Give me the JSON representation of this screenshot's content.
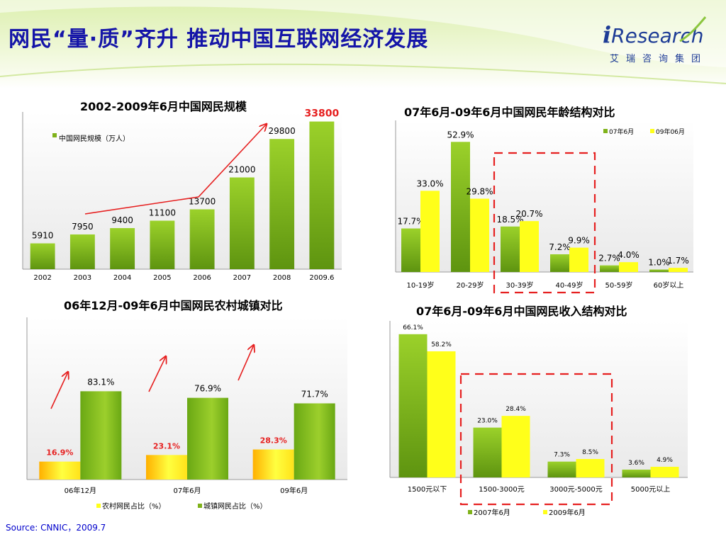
{
  "header": {
    "title": "网民“量·质”齐升  推动中国互联网经济发展",
    "logo_i": "i",
    "logo_text": "Research",
    "logo_sub": "艾瑞咨询集团"
  },
  "source": "Source: CNNIC，2009.7",
  "colors": {
    "green": "#7fb21a",
    "yellow": "#ffff1a",
    "title_blue": "#1515a8",
    "red": "#e62020"
  },
  "chart_data": [
    {
      "type": "bar",
      "title": "2002-2009年6月中国网民规模",
      "categories": [
        "2002",
        "2003",
        "2004",
        "2005",
        "2006",
        "2007",
        "2008",
        "2009.6"
      ],
      "series": [
        {
          "name": "中国网民规模（万人）",
          "values": [
            5910,
            7950,
            9400,
            11100,
            13700,
            21000,
            29800,
            33800
          ]
        }
      ],
      "value_labels": [
        "5910",
        "7950",
        "9400",
        "11100",
        "13700",
        "21000",
        "29800",
        "33800"
      ],
      "ylim": [
        0,
        36000
      ],
      "legend": "top-left"
    },
    {
      "type": "bar",
      "title": "07年6月-09年6月中国网民年龄结构对比",
      "categories": [
        "10-19岁",
        "20-29岁",
        "30-39岁",
        "40-49岁",
        "50-59岁",
        "60岁以上"
      ],
      "series": [
        {
          "name": "07年6月",
          "values": [
            17.7,
            52.9,
            18.5,
            7.2,
            2.7,
            1.0
          ],
          "labels": [
            "17.7%",
            "52.9%",
            "18.5%",
            "7.2%",
            "2.7%",
            "1.0%"
          ]
        },
        {
          "name": "09年06月",
          "values": [
            33.0,
            29.8,
            20.7,
            9.9,
            4.0,
            1.7
          ],
          "labels": [
            "33.0%",
            "29.8%",
            "20.7%",
            "9.9%",
            "4.0%",
            "1.7%"
          ]
        }
      ],
      "ylim": [
        0,
        55
      ],
      "legend": "top-right"
    },
    {
      "type": "bar",
      "title": "06年12月-09年6月中国网民农村城镇对比",
      "categories": [
        "06年12月",
        "07年6月",
        "09年6月"
      ],
      "series": [
        {
          "name": "农村网民占比（%）",
          "values": [
            16.9,
            23.1,
            28.3
          ],
          "labels": [
            "16.9%",
            "23.1%",
            "28.3%"
          ]
        },
        {
          "name": "城镇网民占比（%）",
          "values": [
            83.1,
            76.9,
            71.7
          ],
          "labels": [
            "83.1%",
            "76.9%",
            "71.7%"
          ]
        }
      ],
      "ylim": [
        0,
        100
      ],
      "legend": "bottom"
    },
    {
      "type": "bar",
      "title": "07年6月-09年6月中国网民收入结构对比",
      "categories": [
        "1500元以下",
        "1500-3000元",
        "3000元-5000元",
        "5000元以上"
      ],
      "series": [
        {
          "name": "2007年6月",
          "values": [
            66.1,
            23.0,
            7.3,
            3.6
          ],
          "labels": [
            "66.1%",
            "23.0%",
            "7.3%",
            "3.6%"
          ]
        },
        {
          "name": "2009年6月",
          "values": [
            58.2,
            28.4,
            8.5,
            4.9
          ],
          "labels": [
            "58.2%",
            "28.4%",
            "8.5%",
            "4.9%"
          ]
        }
      ],
      "ylim": [
        0,
        68
      ],
      "legend": "bottom"
    }
  ]
}
